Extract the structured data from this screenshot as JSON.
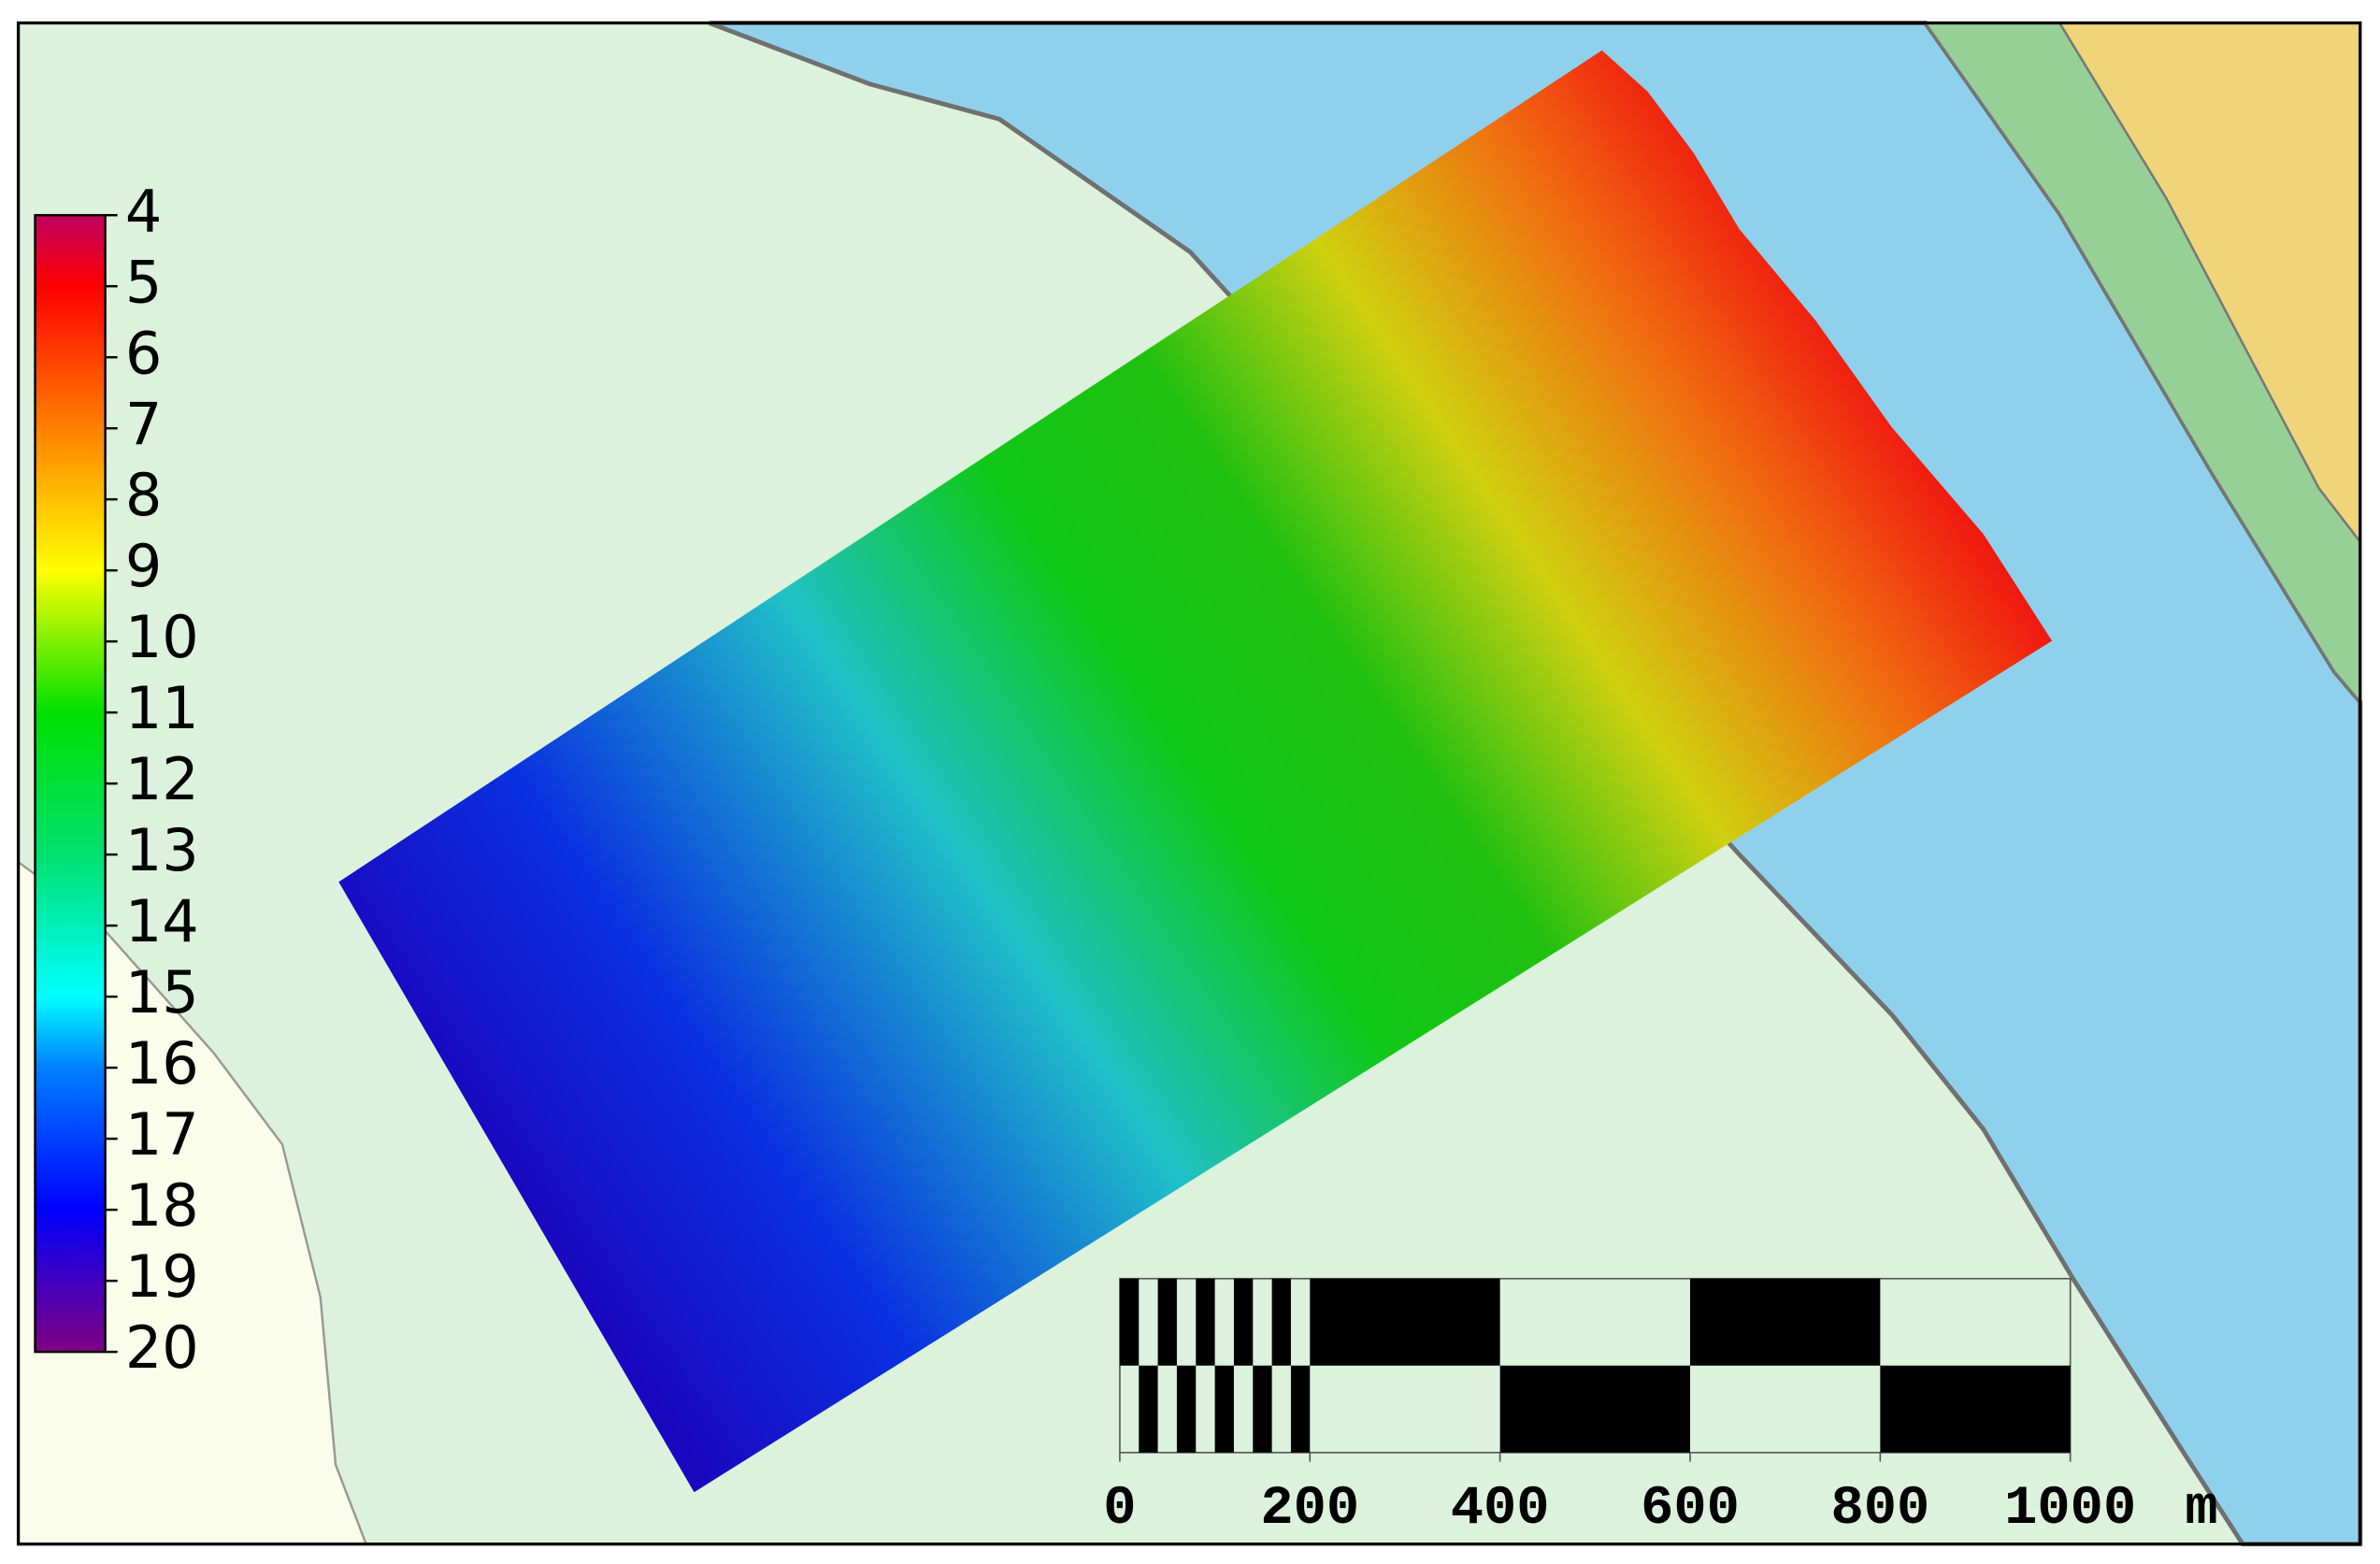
{
  "colorbar": {
    "lim": [
      4,
      20
    ],
    "ticks": [
      4,
      5,
      6,
      7,
      8,
      9,
      10,
      11,
      12,
      13,
      14,
      15,
      16,
      17,
      18,
      19,
      20
    ]
  },
  "scale_bar": {
    "ticks": [
      0,
      200,
      400,
      600,
      800,
      1000
    ],
    "unit": "m"
  }
}
